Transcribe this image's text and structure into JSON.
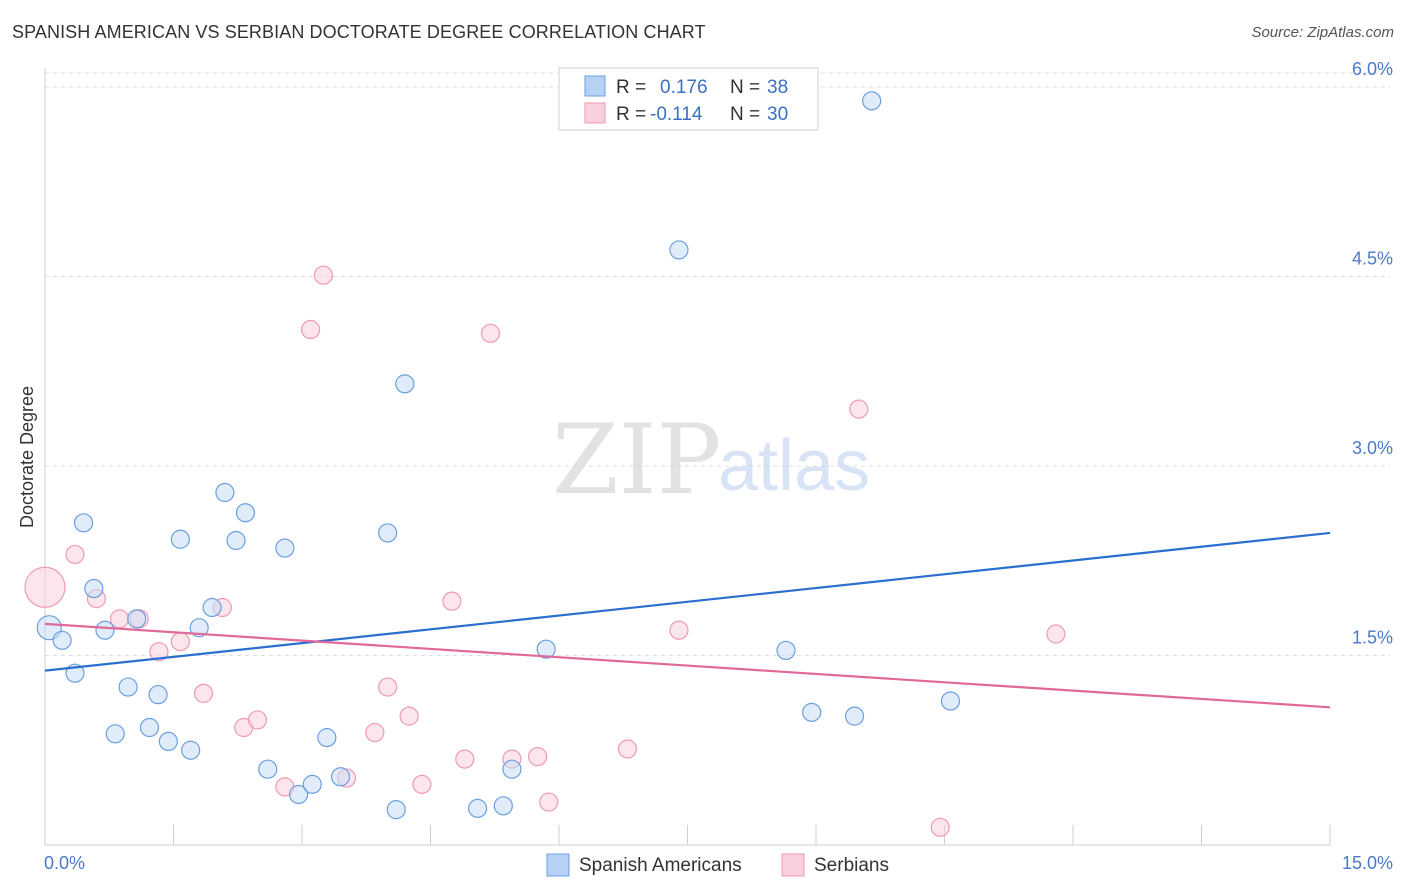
{
  "title": "SPANISH AMERICAN VS SERBIAN DOCTORATE DEGREE CORRELATION CHART",
  "source": "Source: ZipAtlas.com",
  "watermark": {
    "zip": "ZIP",
    "atlas": "atlas"
  },
  "legend": {
    "r_label": "R =",
    "n_label": "N =",
    "rows": [
      {
        "name": "Spanish Americans",
        "r": "0.176",
        "n": "38"
      },
      {
        "name": "Serbians",
        "r": "-0.114",
        "n": "30"
      }
    ]
  },
  "chart_data": {
    "type": "scatter",
    "title": "SPANISH AMERICAN VS SERBIAN DOCTORATE DEGREE CORRELATION CHART",
    "xlabel": "",
    "ylabel": "Doctorate Degree",
    "xlim": [
      0,
      15
    ],
    "ylim": [
      0,
      6.15
    ],
    "x_tick_labels": [
      "0.0%",
      "15.0%"
    ],
    "y_ticks": [
      1.5,
      3.0,
      4.5,
      6.0
    ],
    "y_tick_labels": [
      "1.5%",
      "3.0%",
      "4.5%",
      "6.0%"
    ],
    "grid": true,
    "colors": {
      "Spanish Americans": "#6b9fe0",
      "Serbians": "#ef9ab5",
      "blue_line": "#2a6fcf",
      "pink_line": "#e0699a"
    },
    "series": [
      {
        "name": "Spanish Americans",
        "r": 0.176,
        "n": 38,
        "trend": {
          "x": [
            0,
            15
          ],
          "y": [
            1.38,
            2.47
          ]
        },
        "points": [
          {
            "x": 0.05,
            "y": 1.72,
            "size": "large"
          },
          {
            "x": 0.2,
            "y": 1.62
          },
          {
            "x": 0.35,
            "y": 1.36
          },
          {
            "x": 0.45,
            "y": 2.55
          },
          {
            "x": 0.57,
            "y": 2.03
          },
          {
            "x": 0.7,
            "y": 1.7
          },
          {
            "x": 0.82,
            "y": 0.88
          },
          {
            "x": 0.97,
            "y": 1.25
          },
          {
            "x": 1.07,
            "y": 1.79
          },
          {
            "x": 1.22,
            "y": 0.93
          },
          {
            "x": 1.32,
            "y": 1.19
          },
          {
            "x": 1.44,
            "y": 0.82
          },
          {
            "x": 1.58,
            "y": 2.42
          },
          {
            "x": 1.7,
            "y": 0.75
          },
          {
            "x": 1.8,
            "y": 1.72
          },
          {
            "x": 1.95,
            "y": 1.88
          },
          {
            "x": 2.1,
            "y": 2.79
          },
          {
            "x": 2.23,
            "y": 2.41
          },
          {
            "x": 2.34,
            "y": 2.63
          },
          {
            "x": 2.6,
            "y": 0.6
          },
          {
            "x": 2.8,
            "y": 2.35
          },
          {
            "x": 2.96,
            "y": 0.4
          },
          {
            "x": 3.12,
            "y": 0.48
          },
          {
            "x": 3.29,
            "y": 0.85
          },
          {
            "x": 3.45,
            "y": 0.54
          },
          {
            "x": 4.0,
            "y": 2.47
          },
          {
            "x": 4.1,
            "y": 0.28
          },
          {
            "x": 4.2,
            "y": 3.65
          },
          {
            "x": 5.05,
            "y": 0.29
          },
          {
            "x": 5.35,
            "y": 0.31
          },
          {
            "x": 5.45,
            "y": 0.6
          },
          {
            "x": 5.85,
            "y": 1.55
          },
          {
            "x": 7.4,
            "y": 4.71
          },
          {
            "x": 8.65,
            "y": 1.54
          },
          {
            "x": 8.95,
            "y": 1.05
          },
          {
            "x": 9.45,
            "y": 1.02
          },
          {
            "x": 9.65,
            "y": 5.89
          },
          {
            "x": 10.57,
            "y": 1.14
          }
        ]
      },
      {
        "name": "Serbians",
        "r": -0.114,
        "n": 30,
        "trend": {
          "x": [
            0,
            15
          ],
          "y": [
            1.75,
            1.09
          ]
        },
        "points": [
          {
            "x": 0.0,
            "y": 2.04,
            "size": "xlarge"
          },
          {
            "x": 0.35,
            "y": 2.3
          },
          {
            "x": 0.6,
            "y": 1.95
          },
          {
            "x": 0.87,
            "y": 1.79
          },
          {
            "x": 1.1,
            "y": 1.79
          },
          {
            "x": 1.33,
            "y": 1.53
          },
          {
            "x": 1.58,
            "y": 1.61
          },
          {
            "x": 1.85,
            "y": 1.2
          },
          {
            "x": 2.07,
            "y": 1.88
          },
          {
            "x": 2.32,
            "y": 0.93
          },
          {
            "x": 2.48,
            "y": 0.99
          },
          {
            "x": 2.8,
            "y": 0.46
          },
          {
            "x": 3.1,
            "y": 4.08
          },
          {
            "x": 3.25,
            "y": 4.51
          },
          {
            "x": 3.52,
            "y": 0.53
          },
          {
            "x": 3.85,
            "y": 0.89
          },
          {
            "x": 4.0,
            "y": 1.25
          },
          {
            "x": 4.25,
            "y": 1.02
          },
          {
            "x": 4.4,
            "y": 0.48
          },
          {
            "x": 4.75,
            "y": 1.93
          },
          {
            "x": 4.9,
            "y": 0.68
          },
          {
            "x": 5.2,
            "y": 4.05
          },
          {
            "x": 5.45,
            "y": 0.68
          },
          {
            "x": 5.75,
            "y": 0.7
          },
          {
            "x": 5.88,
            "y": 0.34
          },
          {
            "x": 6.8,
            "y": 0.76
          },
          {
            "x": 7.4,
            "y": 1.7
          },
          {
            "x": 9.5,
            "y": 3.45
          },
          {
            "x": 10.45,
            "y": 0.14
          },
          {
            "x": 11.8,
            "y": 1.67
          }
        ]
      }
    ]
  }
}
